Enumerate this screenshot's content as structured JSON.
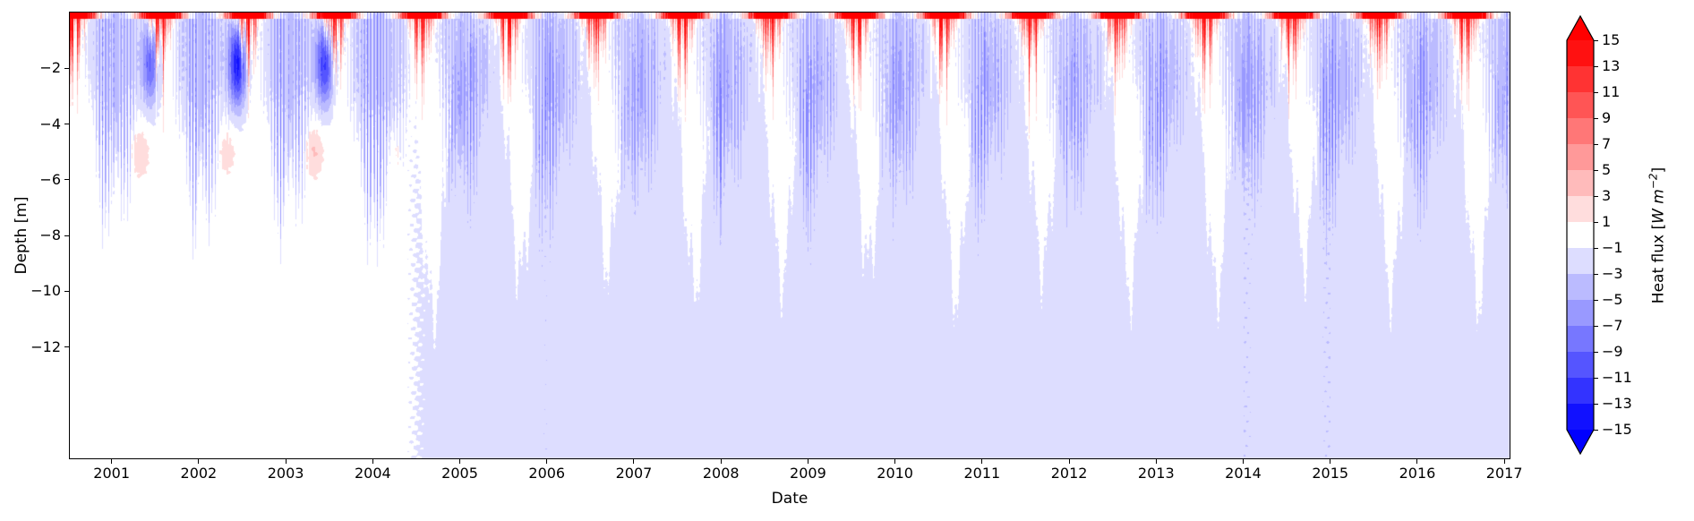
{
  "chart_data": {
    "type": "heatmap",
    "title": "",
    "xlabel": "Date",
    "ylabel": "Depth [m]",
    "xlim": [
      2000.52,
      2017.06
    ],
    "ylim": [
      -16,
      0
    ],
    "x_ticks": [
      2001,
      2002,
      2003,
      2004,
      2005,
      2006,
      2007,
      2008,
      2009,
      2010,
      2011,
      2012,
      2013,
      2014,
      2015,
      2016,
      2017
    ],
    "x_tick_labels": [
      "2001",
      "2002",
      "2003",
      "2004",
      "2005",
      "2006",
      "2007",
      "2008",
      "2009",
      "2010",
      "2011",
      "2012",
      "2013",
      "2014",
      "2015",
      "2016",
      "2017"
    ],
    "y_ticks": [
      -2,
      -4,
      -6,
      -8,
      -10,
      -12
    ],
    "y_tick_labels": [
      "−2",
      "−4",
      "−6",
      "−8",
      "−10",
      "−12"
    ],
    "grid": false,
    "colorbar": {
      "label_prefix": "Heat flux [",
      "label_unit": "W m",
      "label_exponent": "−2",
      "label_suffix": "]",
      "levels": [
        15,
        13,
        11,
        9,
        7,
        5,
        3,
        1,
        -1,
        -3,
        -5,
        -7,
        -9,
        -11,
        -13,
        -15
      ],
      "tick_labels": [
        "15",
        "13",
        "11",
        "9",
        "7",
        "5",
        "3",
        "1",
        "−1",
        "−3",
        "−5",
        "−7",
        "−9",
        "−11",
        "−13",
        "−15"
      ],
      "cmap": "bwr",
      "extend": "both",
      "extend_over_color": "#ff0000",
      "extend_under_color": "#0000ff"
    },
    "field": {
      "summer_surface_flux_wm2": 15,
      "summer_heating_depth_m": 2,
      "winter_surface_flux_wm2": -6,
      "strong_cooling_patches": {
        "years": [
          2001.1,
          2003.7
        ],
        "depth_range_m": [
          0.5,
          3.5
        ],
        "flux_wm2": -13
      },
      "subsurface_warm_patches": {
        "years": [
          2000.7,
          2004.3
        ],
        "depth_m": 5,
        "flux_wm2": 2
      },
      "background_deep_flux_wm2": -2,
      "mixing_depth_pre_2004_m": [
        4,
        8
      ],
      "mixing_depth_post_2004_m": [
        12,
        16
      ],
      "deepening_transition_year": 2004.5
    },
    "description": "Time–depth filled-contour plot of heat flux (W m−2) from mid-2000 to 2017. Each summer shows strong positive (red) surface heat flux exceeding +15 W m−2 confined to the upper ~1–2 m. During the cold season weak negative flux (−1 to −5 W m−2, light blue) penetrates downward in narrow tongues. Before ~2004 the negative-flux layer reaches only ~4–8 m with near-zero (white) flux below; after mid-2004 it extends to the bottom of the domain, leaving white teardrop-shaped gaps at mid depth each late summer. Isolated strong cooling patches (below −11 W m−2) occur near 1–3 m depth in 2001–2003, and weak warm anomalies (~+2 W m−2) appear near 5 m depth in 2001–2004."
  }
}
